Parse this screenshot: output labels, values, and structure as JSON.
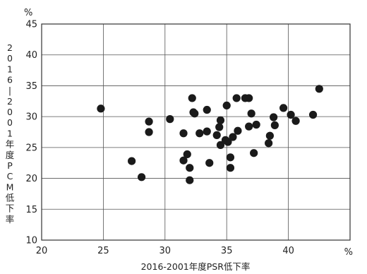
{
  "chart_data": {
    "type": "scatter",
    "xlabel": "2016-2001年度PSR低下率",
    "ylabel": "2016-2001年度PCM低下率",
    "x_unit": "%",
    "y_unit": "%",
    "xlim": [
      20,
      45
    ],
    "ylim": [
      10,
      45
    ],
    "x_ticks": [
      20,
      25,
      30,
      35,
      40
    ],
    "x_tick_labels": [
      "20",
      "25",
      "30",
      "35",
      "40"
    ],
    "y_ticks": [
      10,
      15,
      20,
      25,
      30,
      35,
      40,
      45
    ],
    "y_tick_labels": [
      "10",
      "15",
      "20",
      "25",
      "30",
      "35",
      "40",
      "45"
    ],
    "grid": true,
    "series": [
      {
        "color": "#1a1a1a",
        "x": [
          24.8,
          27.3,
          28.1,
          28.7,
          28.7,
          30.4,
          31.5,
          31.5,
          31.8,
          32.0,
          32.0,
          32.2,
          32.3,
          32.4,
          32.8,
          33.4,
          33.4,
          33.6,
          34.2,
          34.4,
          34.5,
          34.5,
          34.9,
          35.0,
          35.1,
          35.3,
          35.3,
          35.5,
          35.8,
          35.9,
          36.5,
          36.8,
          36.8,
          37.0,
          37.2,
          37.4,
          38.4,
          38.5,
          38.8,
          38.9,
          39.6,
          40.2,
          40.6,
          42.0,
          42.5
        ],
        "y": [
          31.3,
          22.8,
          20.2,
          29.2,
          27.5,
          29.6,
          27.3,
          22.9,
          23.9,
          21.7,
          19.7,
          33.0,
          30.7,
          30.5,
          27.3,
          31.1,
          27.6,
          22.5,
          27.0,
          28.3,
          29.4,
          25.4,
          26.2,
          31.8,
          25.9,
          23.4,
          21.7,
          26.7,
          33.0,
          27.7,
          33.0,
          33.0,
          28.4,
          30.5,
          24.1,
          28.7,
          25.7,
          26.9,
          29.9,
          28.6,
          31.4,
          30.3,
          29.3,
          30.3,
          34.5
        ]
      }
    ]
  }
}
